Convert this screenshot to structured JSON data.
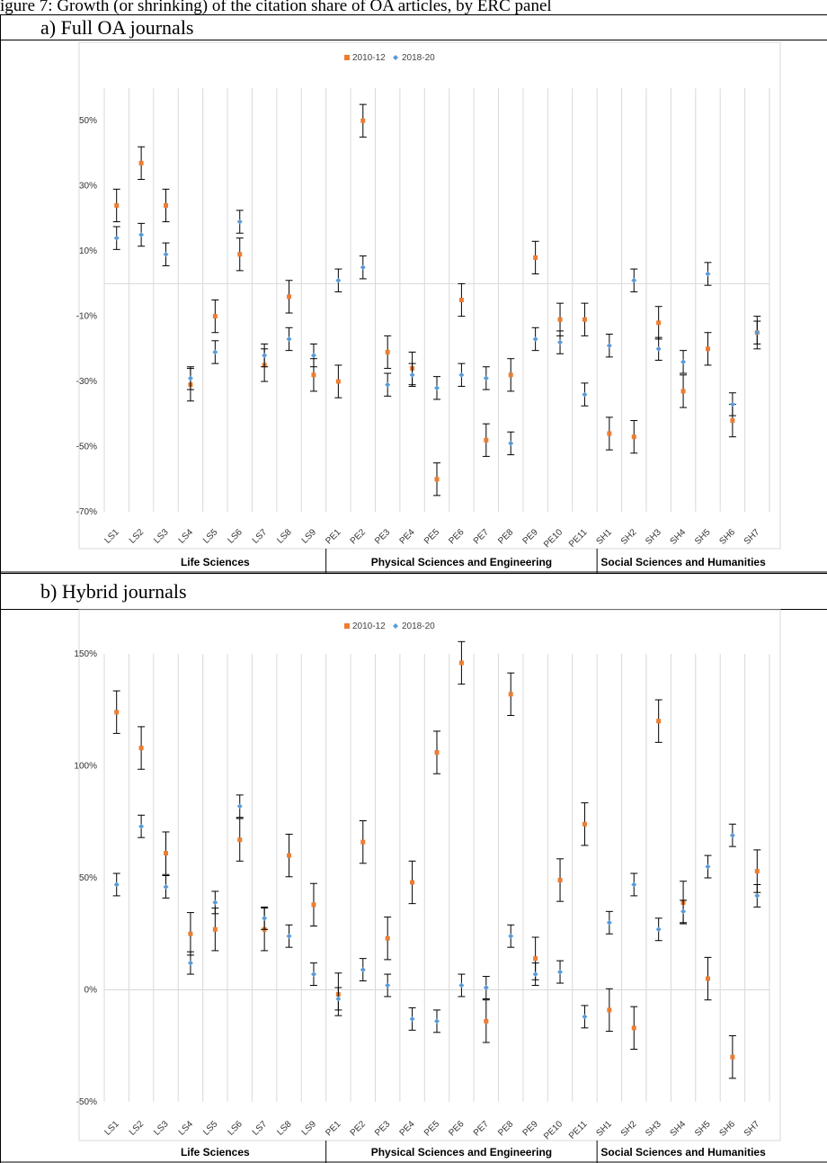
{
  "caption": "igure 7: Growth (or shrinking) of the citation share of OA articles, by ERC panel",
  "panels": [
    {
      "title": "a)  Full OA journals"
    },
    {
      "title": "b)  Hybrid journals"
    }
  ],
  "colors": {
    "2010-12": "#ed7d31",
    "2018-20": "#5b9bd5",
    "errorbar": "#000000",
    "gridline": "#d9d9d9",
    "zeroline": "#d9d9d9"
  },
  "chart_data": [
    {
      "type": "scatter",
      "title": "",
      "legend": {
        "placement": "top-center",
        "entries": [
          "2010-12",
          "2018-20"
        ]
      },
      "grid": true,
      "ylim": [
        -70,
        60
      ],
      "yticks": [
        -70,
        -50,
        -30,
        -10,
        10,
        30,
        50
      ],
      "ytick_labels": [
        "-70%",
        "-50%",
        "-30%",
        "-10%",
        "10%",
        "30%",
        "50%"
      ],
      "categories": [
        "LS1",
        "LS2",
        "LS3",
        "LS4",
        "LS5",
        "LS6",
        "LS7",
        "LS8",
        "LS9",
        "PE1",
        "PE2",
        "PE3",
        "PE4",
        "PE5",
        "PE6",
        "PE7",
        "PE8",
        "PE9",
        "PE10",
        "PE11",
        "SH1",
        "SH2",
        "SH3",
        "SH4",
        "SH5",
        "SH6",
        "SH7"
      ],
      "groups": [
        {
          "label": "Life Sciences",
          "start": 0,
          "end": 8
        },
        {
          "label": "Physical Sciences and Engineering",
          "start": 9,
          "end": 19
        },
        {
          "label": "Social Sciences and Humanities",
          "start": 20,
          "end": 26
        }
      ],
      "series": [
        {
          "name": "2010-12",
          "values": [
            24,
            37,
            24,
            -31,
            -10,
            9,
            -25,
            -4,
            -28,
            -30,
            50,
            -21,
            -26,
            -60,
            -5,
            -48,
            -28,
            8,
            -11,
            -11,
            -46,
            -47,
            -12,
            -33,
            -20,
            -42,
            -15
          ],
          "error": [
            5,
            5,
            5,
            5,
            5,
            5,
            5,
            5,
            5,
            5,
            5,
            5,
            5,
            5,
            5,
            5,
            5,
            5,
            5,
            5,
            5,
            5,
            5,
            5,
            5,
            5,
            5
          ]
        },
        {
          "name": "2018-20",
          "values": [
            14,
            15,
            9,
            -29,
            -21,
            19,
            -22,
            -17,
            -22,
            1,
            5,
            -31,
            -28,
            -32,
            -28,
            -29,
            -49,
            -17,
            -18,
            -34,
            -19,
            1,
            -20,
            -24,
            3,
            -37,
            -15
          ],
          "error": [
            3.5,
            3.5,
            3.5,
            3.5,
            3.5,
            3.5,
            3.5,
            3.5,
            3.5,
            3.5,
            3.5,
            3.5,
            3.5,
            3.5,
            3.5,
            3.5,
            3.5,
            3.5,
            3.5,
            3.5,
            3.5,
            3.5,
            3.5,
            3.5,
            3.5,
            3.5,
            3.5
          ]
        }
      ]
    },
    {
      "type": "scatter",
      "title": "",
      "legend": {
        "placement": "top-center",
        "entries": [
          "2010-12",
          "2018-20"
        ]
      },
      "grid": true,
      "ylim": [
        -50,
        150
      ],
      "yticks": [
        -50,
        0,
        50,
        100,
        150
      ],
      "ytick_labels": [
        "-50%",
        "0%",
        "50%",
        "100%",
        "150%"
      ],
      "categories": [
        "LS1",
        "LS2",
        "LS3",
        "LS4",
        "LS5",
        "LS6",
        "LS7",
        "LS8",
        "LS9",
        "PE1",
        "PE2",
        "PE3",
        "PE4",
        "PE5",
        "PE6",
        "PE7",
        "PE8",
        "PE9",
        "PE10",
        "PE11",
        "SH1",
        "SH2",
        "SH3",
        "SH4",
        "SH5",
        "SH6",
        "SH7"
      ],
      "groups": [
        {
          "label": "Life Sciences",
          "start": 0,
          "end": 8
        },
        {
          "label": "Physical Sciences and Engineering",
          "start": 9,
          "end": 19
        },
        {
          "label": "Social Sciences and Humanities",
          "start": 20,
          "end": 26
        }
      ],
      "series": [
        {
          "name": "2010-12",
          "values": [
            124,
            108,
            61,
            25,
            27,
            67,
            27,
            60,
            38,
            -2,
            66,
            23,
            48,
            106,
            146,
            -14,
            132,
            14,
            49,
            74,
            -9,
            -17,
            120,
            39,
            5,
            -30,
            53
          ],
          "error": [
            9.5,
            9.5,
            9.5,
            9.5,
            9.5,
            9.5,
            9.5,
            9.5,
            9.5,
            9.5,
            9.5,
            9.5,
            9.5,
            9.5,
            9.5,
            9.5,
            9.5,
            9.5,
            9.5,
            9.5,
            9.5,
            9.5,
            9.5,
            9.5,
            9.5,
            9.5,
            9.5
          ]
        },
        {
          "name": "2018-20",
          "values": [
            47,
            73,
            46,
            12,
            39,
            82,
            32,
            24,
            7,
            -4,
            9,
            2,
            -13,
            -14,
            2,
            1,
            24,
            7,
            8,
            -12,
            30,
            47,
            27,
            35,
            55,
            69,
            42
          ],
          "error": [
            5,
            5,
            5,
            5,
            5,
            5,
            5,
            5,
            5,
            5,
            5,
            5,
            5,
            5,
            5,
            5,
            5,
            5,
            5,
            5,
            5,
            5,
            5,
            5,
            5,
            5,
            5
          ]
        }
      ]
    }
  ]
}
